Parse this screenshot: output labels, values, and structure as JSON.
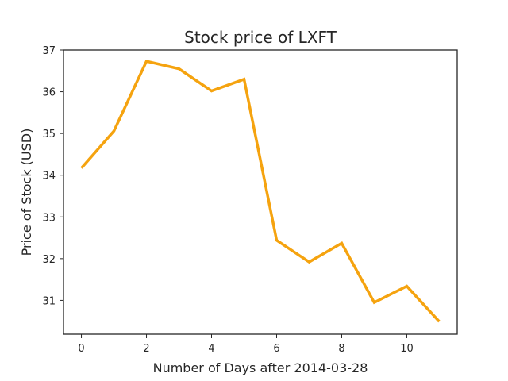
{
  "chart_data": {
    "type": "line",
    "title": "Stock price of LXFT",
    "xlabel": "Number of Days after 2014-03-28",
    "ylabel": "Price of Stock (USD)",
    "x": [
      0,
      1,
      2,
      3,
      4,
      5,
      6,
      7,
      8,
      9,
      10,
      11
    ],
    "series": [
      {
        "values": [
          34.17,
          35.06,
          36.73,
          36.55,
          36.02,
          36.3,
          32.44,
          31.92,
          32.37,
          30.95,
          31.34,
          30.49
        ],
        "color": "#f5a30f"
      }
    ],
    "xlim": [
      -0.55,
      11.55
    ],
    "ylim": [
      30.19,
      37.0
    ],
    "xticks": [
      0,
      2,
      4,
      6,
      8,
      10
    ],
    "yticks": [
      31,
      32,
      33,
      34,
      35,
      36,
      37
    ],
    "grid": false,
    "legend": "none"
  }
}
